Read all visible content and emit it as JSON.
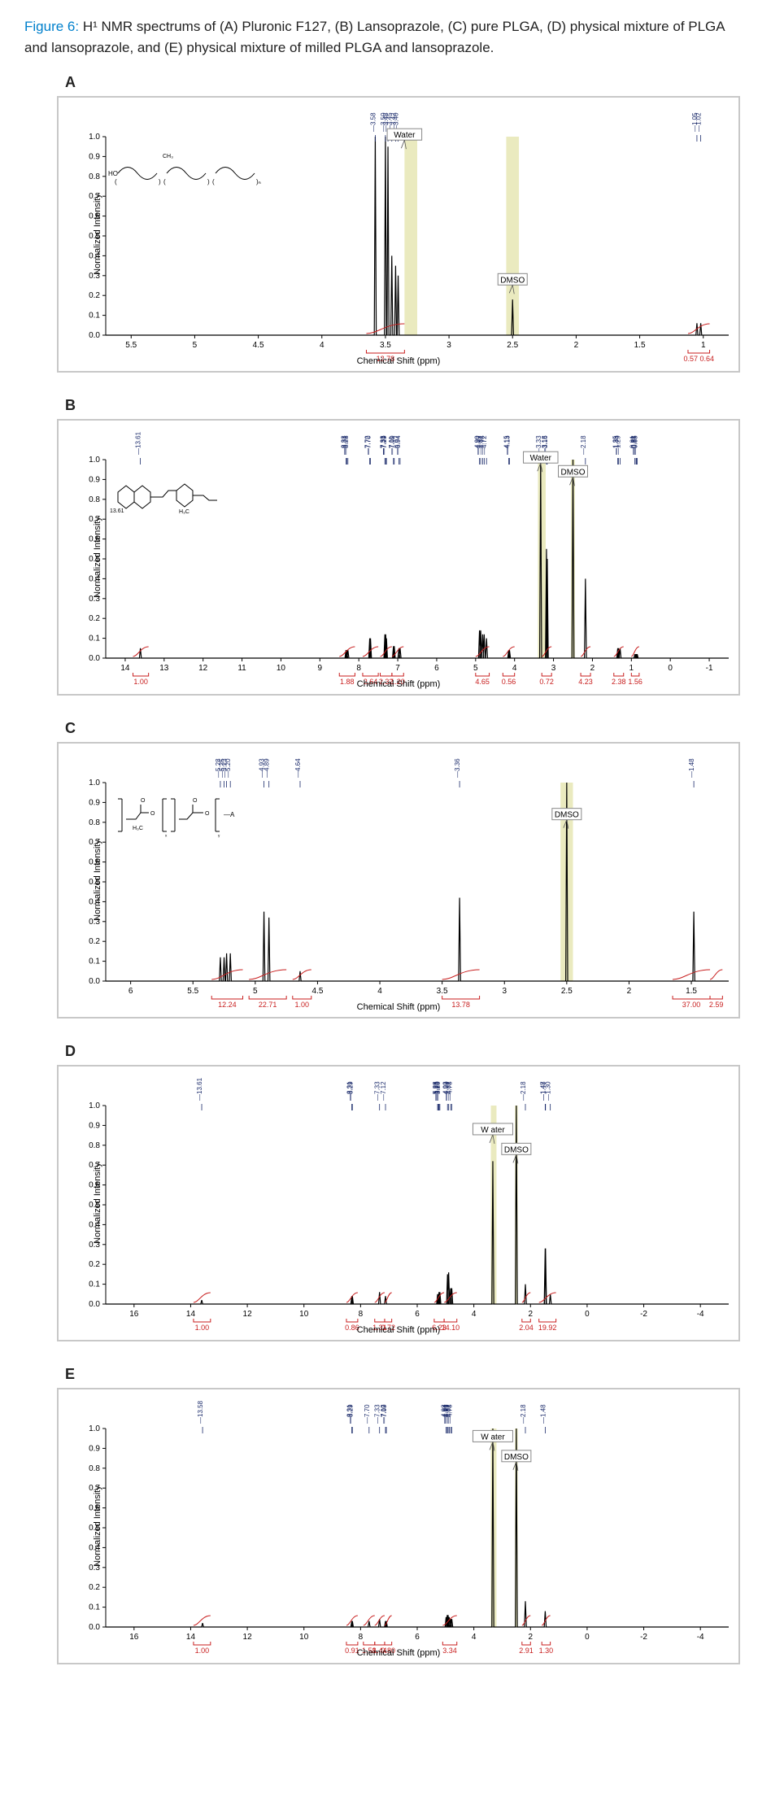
{
  "caption": {
    "label": "Figure 6:",
    "text": " H¹ NMR spectrums of (A) Pluronic F127, (B) Lansoprazole, (C) pure PLGA, (D) physical mixture of PLGA and lansoprazole, and (E) physical mixture of milled PLGA and lansoprazole."
  },
  "common": {
    "ylabel": "Normalized Intensity",
    "xlabel": "Chemical Shift (ppm)",
    "y_ticks": [
      0,
      0.1,
      0.2,
      0.3,
      0.4,
      0.5,
      0.6,
      0.7,
      0.8,
      0.9,
      1.0
    ],
    "plot_bg": "#ffffff",
    "border_color": "#c8c8c8",
    "highlight_color": "#d8d88a",
    "peak_color": "#1b2b6b",
    "integral_color": "#c81e1e"
  },
  "panels": [
    {
      "id": "A",
      "x_ticks": [
        5.5,
        5.0,
        4.5,
        4.0,
        3.5,
        3.0,
        2.5,
        2.0,
        1.5,
        1.0
      ],
      "xlim": [
        5.7,
        0.8
      ],
      "highlight_bands": [
        [
          3.35,
          3.25
        ],
        [
          2.55,
          2.45
        ]
      ],
      "peaks": [
        {
          "ppm": 3.58,
          "h": 1.0,
          "label": "3.58"
        },
        {
          "ppm": 3.5,
          "h": 1.0,
          "label": "3.50"
        },
        {
          "ppm": 3.48,
          "h": 0.95,
          "label": "3.48"
        },
        {
          "ppm": 3.45,
          "h": 0.4,
          "label": "3.45"
        },
        {
          "ppm": 3.42,
          "h": 0.35,
          "label": "3.42"
        },
        {
          "ppm": 3.4,
          "h": 0.3,
          "label": "3.40"
        },
        {
          "ppm": 2.5,
          "h": 0.18,
          "label": ""
        },
        {
          "ppm": 1.05,
          "h": 0.06,
          "label": "1.05"
        },
        {
          "ppm": 1.02,
          "h": 0.06,
          "label": "1.02"
        }
      ],
      "integrals": [
        {
          "range": [
            3.65,
            3.35
          ],
          "value": "12.78"
        },
        {
          "range": [
            1.12,
            0.95
          ],
          "value": "0.57 0.64"
        }
      ],
      "solvent_labels": [
        {
          "text": "Water",
          "ppm": 3.35,
          "y": 0.95
        },
        {
          "text": "DMSO",
          "ppm": 2.5,
          "y": 0.22
        }
      ],
      "structure": "pluronic"
    },
    {
      "id": "B",
      "x_ticks": [
        14,
        13,
        12,
        11,
        10,
        9,
        8,
        7,
        6,
        5,
        4,
        3,
        2,
        1,
        0,
        -1
      ],
      "xlim": [
        14.5,
        -1.5
      ],
      "highlight_bands": [
        [
          3.4,
          3.2
        ],
        [
          2.55,
          2.45
        ]
      ],
      "peaks": [
        {
          "ppm": 13.61,
          "h": 0.05,
          "label": "13.61"
        },
        {
          "ppm": 8.33,
          "h": 0.04,
          "label": "8.33"
        },
        {
          "ppm": 8.31,
          "h": 0.04,
          "label": "8.31"
        },
        {
          "ppm": 8.28,
          "h": 0.04,
          "label": "8.28"
        },
        {
          "ppm": 7.72,
          "h": 0.1,
          "label": "7.72"
        },
        {
          "ppm": 7.7,
          "h": 0.1,
          "label": "7.70"
        },
        {
          "ppm": 7.33,
          "h": 0.12,
          "label": "7.33"
        },
        {
          "ppm": 7.31,
          "h": 0.12,
          "label": "7.31"
        },
        {
          "ppm": 7.29,
          "h": 0.1,
          "label": "7.29"
        },
        {
          "ppm": 7.11,
          "h": 0.06,
          "label": "7.11"
        },
        {
          "ppm": 7.09,
          "h": 0.06,
          "label": "7.09"
        },
        {
          "ppm": 6.97,
          "h": 0.05,
          "label": "6.97"
        },
        {
          "ppm": 6.94,
          "h": 0.05,
          "label": "6.94"
        },
        {
          "ppm": 4.9,
          "h": 0.14,
          "label": "4.90"
        },
        {
          "ppm": 4.87,
          "h": 0.14,
          "label": "4.87"
        },
        {
          "ppm": 4.82,
          "h": 0.12,
          "label": "4.82"
        },
        {
          "ppm": 4.78,
          "h": 0.12,
          "label": "4.78"
        },
        {
          "ppm": 4.72,
          "h": 0.1,
          "label": "4.72"
        },
        {
          "ppm": 4.15,
          "h": 0.04,
          "label": "4.15"
        },
        {
          "ppm": 4.13,
          "h": 0.04,
          "label": "4.13"
        },
        {
          "ppm": 3.33,
          "h": 1.0,
          "label": "3.33"
        },
        {
          "ppm": 3.18,
          "h": 0.55,
          "label": "3.18"
        },
        {
          "ppm": 3.16,
          "h": 0.5,
          "label": "3.16"
        },
        {
          "ppm": 2.5,
          "h": 1.0,
          "label": ""
        },
        {
          "ppm": 2.18,
          "h": 0.4,
          "label": "2.18"
        },
        {
          "ppm": 1.35,
          "h": 0.05,
          "label": "1.35"
        },
        {
          "ppm": 1.33,
          "h": 0.05,
          "label": "1.33"
        },
        {
          "ppm": 1.29,
          "h": 0.05,
          "label": "1.29"
        },
        {
          "ppm": 0.91,
          "h": 0.02,
          "label": "0.91"
        },
        {
          "ppm": 0.88,
          "h": 0.02,
          "label": "0.88"
        },
        {
          "ppm": 0.87,
          "h": 0.02,
          "label": "0.87"
        },
        {
          "ppm": 0.85,
          "h": 0.02,
          "label": "0.85"
        }
      ],
      "integrals": [
        {
          "range": [
            13.8,
            13.4
          ],
          "value": "1.00"
        },
        {
          "range": [
            8.5,
            8.1
          ],
          "value": "1.88"
        },
        {
          "range": [
            7.9,
            7.5
          ],
          "value": "2.64"
        },
        {
          "range": [
            7.45,
            7.15
          ],
          "value": "2.32"
        },
        {
          "range": [
            7.15,
            6.85
          ],
          "value": "1.20"
        },
        {
          "range": [
            5.0,
            4.65
          ],
          "value": "4.65"
        },
        {
          "range": [
            4.3,
            4.0
          ],
          "value": "0.56"
        },
        {
          "range": [
            3.3,
            3.05
          ],
          "value": "0.72"
        },
        {
          "range": [
            2.3,
            2.05
          ],
          "value": "4.23"
        },
        {
          "range": [
            1.45,
            1.2
          ],
          "value": "2.38"
        },
        {
          "range": [
            1.0,
            0.8
          ],
          "value": "1.56"
        }
      ],
      "solvent_labels": [
        {
          "text": "Water",
          "ppm": 3.33,
          "y": 0.95
        },
        {
          "text": "DMSO",
          "ppm": 2.5,
          "y": 0.88
        }
      ],
      "structure": "lansoprazole"
    },
    {
      "id": "C",
      "x_ticks": [
        6.0,
        5.5,
        5.0,
        4.5,
        4.0,
        3.5,
        3.0,
        2.5,
        2.0,
        1.5
      ],
      "xlim": [
        6.2,
        1.2
      ],
      "highlight_bands": [
        [
          2.55,
          2.45
        ]
      ],
      "peaks": [
        {
          "ppm": 5.28,
          "h": 0.12,
          "label": "5.28"
        },
        {
          "ppm": 5.25,
          "h": 0.12,
          "label": "5.25"
        },
        {
          "ppm": 5.23,
          "h": 0.14,
          "label": "5.23"
        },
        {
          "ppm": 5.2,
          "h": 0.14,
          "label": "5.20"
        },
        {
          "ppm": 4.93,
          "h": 0.35,
          "label": "4.93"
        },
        {
          "ppm": 4.89,
          "h": 0.32,
          "label": "4.89"
        },
        {
          "ppm": 4.64,
          "h": 0.05,
          "label": "4.64"
        },
        {
          "ppm": 3.36,
          "h": 0.42,
          "label": "3.36"
        },
        {
          "ppm": 2.5,
          "h": 1.0,
          "label": ""
        },
        {
          "ppm": 1.48,
          "h": 0.35,
          "label": "1.48"
        }
      ],
      "integrals": [
        {
          "range": [
            5.35,
            5.1
          ],
          "value": "12.24"
        },
        {
          "range": [
            5.05,
            4.75
          ],
          "value": "22.71"
        },
        {
          "range": [
            4.7,
            4.55
          ],
          "value": "1.00"
        },
        {
          "range": [
            3.5,
            3.2
          ],
          "value": "13.78"
        },
        {
          "range": [
            1.65,
            1.35
          ],
          "value": "37.00"
        },
        {
          "range": [
            1.35,
            1.25
          ],
          "value": "2.59"
        }
      ],
      "solvent_labels": [
        {
          "text": "DMSO",
          "ppm": 2.5,
          "y": 0.78
        }
      ],
      "structure": "plga"
    },
    {
      "id": "D",
      "x_ticks": [
        16,
        14,
        12,
        10,
        8,
        6,
        4,
        2,
        0,
        -2,
        -4
      ],
      "xlim": [
        17,
        -5
      ],
      "highlight_bands": [
        [
          3.4,
          3.2
        ],
        [
          2.55,
          2.45
        ]
      ],
      "peaks": [
        {
          "ppm": 13.61,
          "h": 0.02,
          "label": "13.61"
        },
        {
          "ppm": 8.31,
          "h": 0.04,
          "label": "8.31"
        },
        {
          "ppm": 8.29,
          "h": 0.04,
          "label": "8.29"
        },
        {
          "ppm": 7.33,
          "h": 0.06,
          "label": "7.33"
        },
        {
          "ppm": 7.12,
          "h": 0.04,
          "label": "7.12"
        },
        {
          "ppm": 5.28,
          "h": 0.05,
          "label": "5.28"
        },
        {
          "ppm": 5.25,
          "h": 0.05,
          "label": "5.25"
        },
        {
          "ppm": 5.23,
          "h": 0.06,
          "label": "5.23"
        },
        {
          "ppm": 5.2,
          "h": 0.06,
          "label": "5.20"
        },
        {
          "ppm": 4.93,
          "h": 0.15,
          "label": "4.93"
        },
        {
          "ppm": 4.89,
          "h": 0.16,
          "label": "4.89"
        },
        {
          "ppm": 4.82,
          "h": 0.08,
          "label": "4.82"
        },
        {
          "ppm": 4.78,
          "h": 0.08,
          "label": "4.78"
        },
        {
          "ppm": 3.33,
          "h": 0.72,
          "label": ""
        },
        {
          "ppm": 2.5,
          "h": 1.0,
          "label": ""
        },
        {
          "ppm": 2.18,
          "h": 0.1,
          "label": "2.18"
        },
        {
          "ppm": 1.48,
          "h": 0.28,
          "label": "1.48"
        },
        {
          "ppm": 1.47,
          "h": 0.28,
          "label": "1.47"
        },
        {
          "ppm": 1.3,
          "h": 0.05,
          "label": "1.30"
        }
      ],
      "integrals": [
        {
          "range": [
            13.9,
            13.3
          ],
          "value": "1.00"
        },
        {
          "range": [
            8.5,
            8.1
          ],
          "value": "0.86"
        },
        {
          "range": [
            7.5,
            7.15
          ],
          "value": "1.31"
        },
        {
          "range": [
            7.15,
            6.9
          ],
          "value": "0.72"
        },
        {
          "range": [
            5.4,
            5.05
          ],
          "value": "6.23"
        },
        {
          "range": [
            5.05,
            4.6
          ],
          "value": "14.10"
        },
        {
          "range": [
            2.3,
            2.0
          ],
          "value": "2.04"
        },
        {
          "range": [
            1.7,
            1.1
          ],
          "value": "19.92"
        }
      ],
      "solvent_labels": [
        {
          "text": "W ater",
          "ppm": 3.33,
          "y": 0.82
        },
        {
          "text": "DMSO",
          "ppm": 2.5,
          "y": 0.72
        }
      ],
      "structure": null
    },
    {
      "id": "E",
      "x_ticks": [
        16,
        14,
        12,
        10,
        8,
        6,
        4,
        2,
        0,
        -2,
        -4
      ],
      "xlim": [
        17,
        -5
      ],
      "highlight_bands": [
        [
          3.4,
          3.2
        ],
        [
          2.55,
          2.45
        ]
      ],
      "peaks": [
        {
          "ppm": 13.58,
          "h": 0.02,
          "label": "13.58"
        },
        {
          "ppm": 8.31,
          "h": 0.03,
          "label": "8.31"
        },
        {
          "ppm": 8.29,
          "h": 0.03,
          "label": "8.29"
        },
        {
          "ppm": 7.7,
          "h": 0.03,
          "label": "7.70"
        },
        {
          "ppm": 7.33,
          "h": 0.04,
          "label": "7.33"
        },
        {
          "ppm": 7.12,
          "h": 0.03,
          "label": "7.12"
        },
        {
          "ppm": 7.09,
          "h": 0.03,
          "label": "7.09"
        },
        {
          "ppm": 4.98,
          "h": 0.05,
          "label": "4.98"
        },
        {
          "ppm": 4.94,
          "h": 0.06,
          "label": "4.94"
        },
        {
          "ppm": 4.91,
          "h": 0.06,
          "label": "4.91"
        },
        {
          "ppm": 4.87,
          "h": 0.05,
          "label": "4.87"
        },
        {
          "ppm": 4.82,
          "h": 0.04,
          "label": "4.82"
        },
        {
          "ppm": 4.78,
          "h": 0.04,
          "label": "4.78"
        },
        {
          "ppm": 3.33,
          "h": 1.0,
          "label": ""
        },
        {
          "ppm": 2.5,
          "h": 1.0,
          "label": ""
        },
        {
          "ppm": 2.18,
          "h": 0.13,
          "label": "2.18"
        },
        {
          "ppm": 1.48,
          "h": 0.08,
          "label": "1.48"
        }
      ],
      "integrals": [
        {
          "range": [
            13.9,
            13.3
          ],
          "value": "1.00"
        },
        {
          "range": [
            8.5,
            8.1
          ],
          "value": "0.91"
        },
        {
          "range": [
            7.9,
            7.5
          ],
          "value": "1.58"
        },
        {
          "range": [
            7.5,
            7.15
          ],
          "value": "1.44"
        },
        {
          "range": [
            7.15,
            6.9
          ],
          "value": "0.80"
        },
        {
          "range": [
            5.1,
            4.6
          ],
          "value": "3.34"
        },
        {
          "range": [
            2.3,
            2.0
          ],
          "value": "2.91"
        },
        {
          "range": [
            1.6,
            1.3
          ],
          "value": "1.30"
        }
      ],
      "solvent_labels": [
        {
          "text": "W ater",
          "ppm": 3.33,
          "y": 0.9
        },
        {
          "text": "DMSO",
          "ppm": 2.5,
          "y": 0.8
        }
      ],
      "structure": null
    }
  ]
}
